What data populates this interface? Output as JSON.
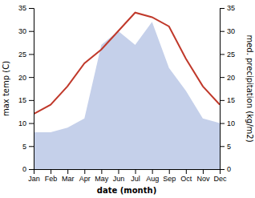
{
  "chart_data": {
    "type": "line",
    "xlabel": "date (month)",
    "ylabel": "max temp (C)",
    "y2label": "med. precipitation (kg/m2)",
    "categories": [
      "Jan",
      "Feb",
      "Mar",
      "Apr",
      "May",
      "Jun",
      "Jul",
      "Aug",
      "Sep",
      "Oct",
      "Nov",
      "Dec"
    ],
    "series": [
      {
        "type": "area",
        "axis": "y2",
        "color": "#c5d0ea",
        "values": [
          8,
          8,
          9,
          11,
          27,
          30,
          27,
          32,
          22,
          17,
          11,
          10
        ]
      },
      {
        "type": "line",
        "color": "#c0392b",
        "values": [
          12,
          14,
          18,
          23,
          26,
          30,
          34,
          33,
          31,
          24,
          18,
          14
        ]
      }
    ],
    "ylim": [
      0,
      35
    ],
    "yticks": [
      0,
      5,
      10,
      15,
      20,
      25,
      30,
      35
    ],
    "y2lim": [
      0,
      35
    ],
    "y2ticks": [
      0,
      5,
      10,
      15,
      20,
      25,
      30,
      35
    ],
    "grid": false
  }
}
